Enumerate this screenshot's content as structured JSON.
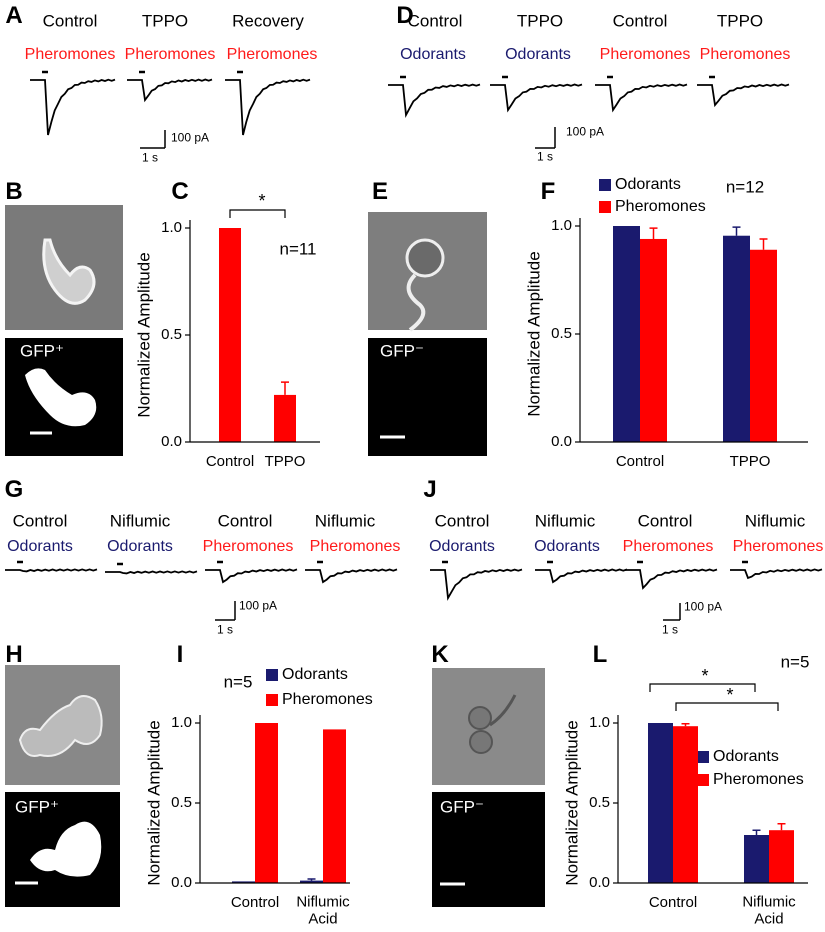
{
  "panel_labels": [
    "A",
    "B",
    "C",
    "D",
    "E",
    "F",
    "G",
    "H",
    "I",
    "J",
    "K",
    "L"
  ],
  "trace_panels": [
    {
      "labels": [
        "Control",
        "TPPO",
        "Recovery"
      ],
      "stimuli": [
        "Pheromones",
        "Pheromones",
        "Pheromones"
      ],
      "scale_current": "100 pA",
      "scale_time": "1 s"
    },
    {
      "labels": [
        "Control",
        "TPPO",
        "Control",
        "TPPO"
      ],
      "stimuli": [
        "Odorants",
        "Odorants",
        "Pheromones",
        "Pheromones"
      ],
      "scale_current": "100 pA",
      "scale_time": "1 s"
    },
    {
      "labels": [
        "Control",
        "Niflumic",
        "Control",
        "Niflumic"
      ],
      "stimuli": [
        "Odorants",
        "Odorants",
        "Pheromones",
        "Pheromones"
      ],
      "scale_current": "100 pA",
      "scale_time": "1 s"
    },
    {
      "labels": [
        "Control",
        "Niflumic",
        "Control",
        "Niflumic"
      ],
      "stimuli": [
        "Odorants",
        "Odorants",
        "Pheromones",
        "Pheromones"
      ],
      "scale_current": "100 pA",
      "scale_time": "1 s"
    }
  ],
  "stimulus_colors": {
    "Odorants": "#1a1a6e",
    "Pheromones": "#ff1a1a"
  },
  "image_labels": [
    "GFP⁺",
    "GFP⁻",
    "GFP⁺",
    "GFP⁻"
  ],
  "chart_data": [
    {
      "type": "bar",
      "ylabel": "Normalized Amplitude",
      "categories": [
        "Control",
        "TPPO"
      ],
      "values": [
        1,
        0.22
      ],
      "errors": [
        null,
        0.06
      ],
      "color": "#ff0000",
      "ylim": [
        0,
        1
      ],
      "yticks": [
        {
          "value": 0,
          "label": "0.0"
        },
        0.5,
        {
          "value": 1,
          "label": "1.0"
        }
      ],
      "annotations": [
        "*"
      ],
      "n_label": "n=11"
    },
    {
      "type": "bar",
      "ylabel": "Normalized Amplitude",
      "categories": [
        "Control",
        "TPPO"
      ],
      "series": [
        {
          "name": "Odorants",
          "color": "#1a1a6e",
          "values": [
            1,
            0.955
          ],
          "errors": [
            null,
            0.04
          ]
        },
        {
          "name": "Pheromones",
          "color": "#ff0000",
          "values": [
            0.94,
            0.89
          ],
          "errors": [
            0.05,
            0.05
          ]
        }
      ],
      "ylim": [
        0,
        1
      ],
      "yticks": [
        {
          "value": 0,
          "label": "0.0"
        },
        0.5,
        {
          "value": 1,
          "label": "1.0"
        }
      ],
      "n_label": "n=12"
    },
    {
      "type": "bar",
      "ylabel": "Normalized Amplitude",
      "categories": [
        "Control",
        "Niflumic Acid"
      ],
      "series": [
        {
          "name": "Odorants",
          "color": "#1a1a6e",
          "values": [
            0.01,
            0.015
          ],
          "errors": [
            null,
            0.01
          ]
        },
        {
          "name": "Pheromones",
          "color": "#ff0000",
          "values": [
            1,
            0.96
          ],
          "errors": [
            null,
            null
          ]
        }
      ],
      "ylim": [
        0,
        1
      ],
      "yticks": [
        {
          "value": 0,
          "label": "0.0"
        },
        0.5,
        {
          "value": 1,
          "label": "1.0"
        }
      ],
      "n_label": "n=5"
    },
    {
      "type": "bar",
      "ylabel": "Normalized Amplitude",
      "categories": [
        "Control",
        "Niflumic Acid"
      ],
      "series": [
        {
          "name": "Odorants",
          "color": "#1a1a6e",
          "values": [
            1,
            0.3
          ],
          "errors": [
            null,
            0.03
          ]
        },
        {
          "name": "Pheromones",
          "color": "#ff0000",
          "values": [
            0.98,
            0.33
          ],
          "errors": [
            0.015,
            0.04
          ]
        }
      ],
      "ylim": [
        0,
        1
      ],
      "yticks": [
        {
          "value": 0,
          "label": "0.0"
        },
        0.5,
        {
          "value": 1,
          "label": "1.0"
        }
      ],
      "annotations": [
        "*",
        "*"
      ],
      "n_label": "n=5"
    }
  ]
}
